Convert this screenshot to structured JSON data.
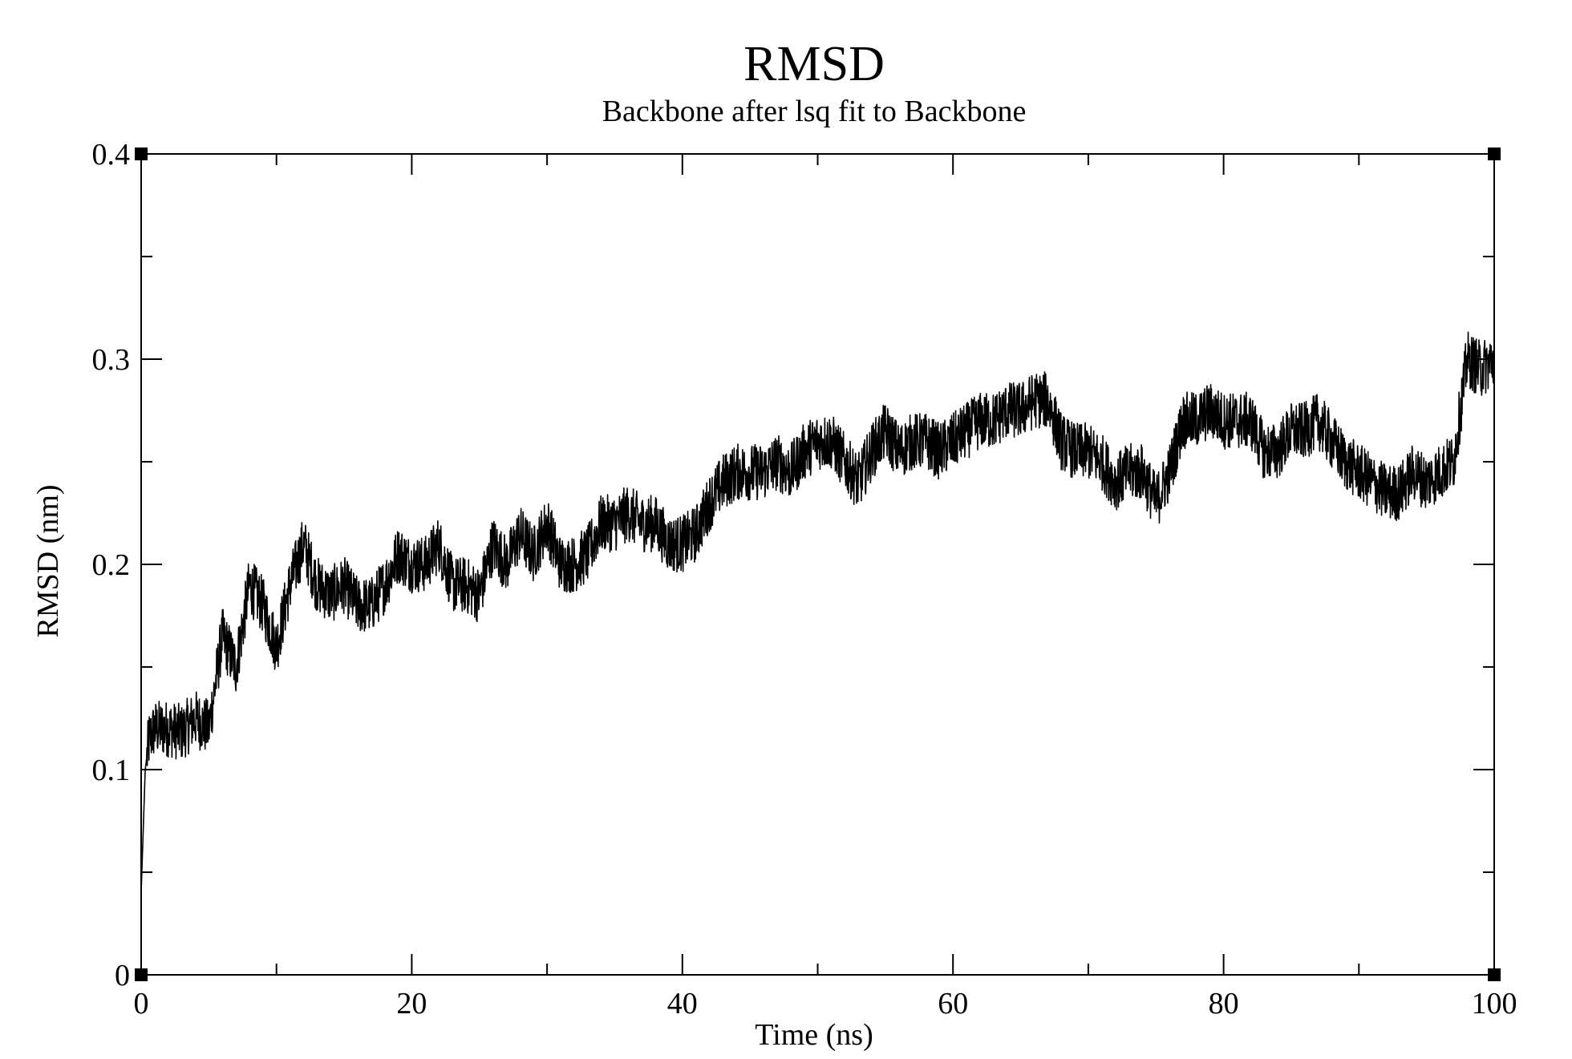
{
  "chart_data": {
    "type": "line",
    "title": "RMSD",
    "subtitle": "Backbone after lsq fit to Backbone",
    "xlabel": "Time (ns)",
    "ylabel": "RMSD (nm)",
    "xlim": [
      0,
      100
    ],
    "ylim": [
      0,
      0.4
    ],
    "x_ticks": [
      "0",
      "20",
      "40",
      "60",
      "80",
      "100"
    ],
    "y_ticks": [
      "0",
      "0.1",
      "0.2",
      "0.3",
      "0.4"
    ],
    "grid": false,
    "legend": "none",
    "line_color": "#000000",
    "series": [
      {
        "x": [
          0,
          0.3,
          0.6,
          1,
          2,
          3,
          4,
          5,
          6,
          7,
          8,
          9,
          10,
          11,
          12,
          13,
          14,
          15,
          16,
          17,
          18,
          19,
          20,
          21,
          22,
          23,
          24,
          25,
          26,
          27,
          28,
          29,
          30,
          31,
          32,
          33,
          34,
          35,
          36,
          37,
          38,
          39,
          40,
          41,
          42,
          43,
          44,
          45,
          46,
          47,
          48,
          49,
          50,
          51,
          52,
          53,
          54,
          55,
          56,
          57,
          58,
          59,
          60,
          61,
          62,
          63,
          64,
          65,
          66,
          67,
          68,
          69,
          70,
          71,
          72,
          73,
          74,
          75,
          76,
          77,
          78,
          79,
          80,
          81,
          82,
          83,
          84,
          85,
          86,
          87,
          88,
          89,
          90,
          91,
          92,
          93,
          94,
          95,
          96,
          97,
          98,
          99,
          100
        ],
        "values": [
          0.04,
          0.1,
          0.115,
          0.12,
          0.12,
          0.118,
          0.125,
          0.12,
          0.165,
          0.15,
          0.19,
          0.18,
          0.16,
          0.19,
          0.21,
          0.19,
          0.185,
          0.19,
          0.18,
          0.18,
          0.19,
          0.205,
          0.2,
          0.2,
          0.21,
          0.19,
          0.19,
          0.185,
          0.21,
          0.2,
          0.215,
          0.205,
          0.22,
          0.2,
          0.2,
          0.205,
          0.22,
          0.22,
          0.225,
          0.22,
          0.22,
          0.21,
          0.21,
          0.215,
          0.23,
          0.24,
          0.245,
          0.245,
          0.245,
          0.25,
          0.245,
          0.255,
          0.26,
          0.26,
          0.25,
          0.24,
          0.255,
          0.265,
          0.255,
          0.26,
          0.26,
          0.255,
          0.26,
          0.265,
          0.27,
          0.27,
          0.275,
          0.275,
          0.28,
          0.28,
          0.26,
          0.255,
          0.255,
          0.25,
          0.24,
          0.245,
          0.245,
          0.23,
          0.245,
          0.27,
          0.27,
          0.275,
          0.27,
          0.27,
          0.27,
          0.255,
          0.255,
          0.265,
          0.265,
          0.27,
          0.26,
          0.25,
          0.245,
          0.24,
          0.235,
          0.235,
          0.245,
          0.24,
          0.245,
          0.25,
          0.3,
          0.295,
          0.3
        ]
      }
    ]
  }
}
